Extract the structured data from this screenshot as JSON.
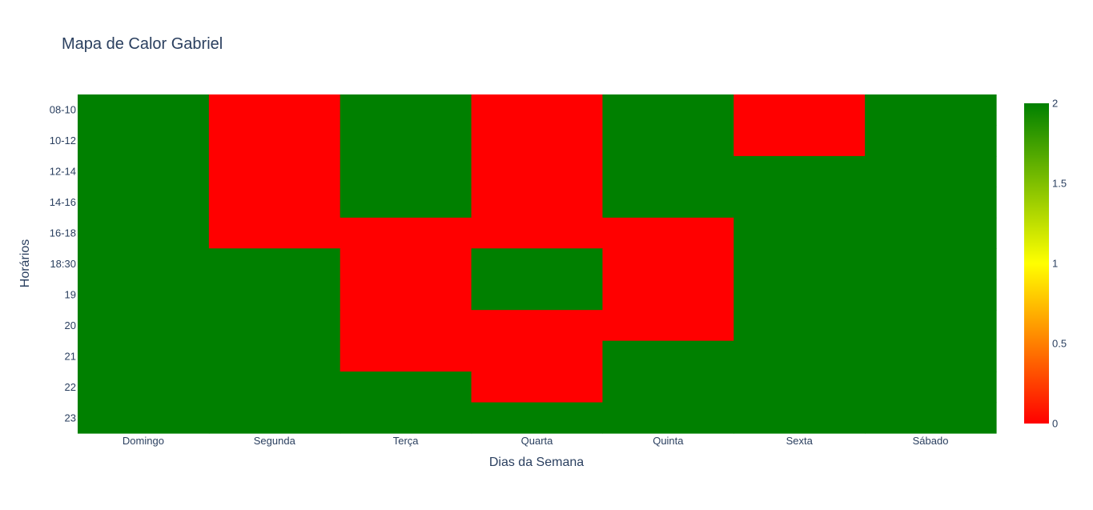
{
  "chart_data": {
    "type": "heatmap",
    "title": "Mapa de Calor Gabriel",
    "xlabel": "Dias da Semana",
    "ylabel": "Horários",
    "x": [
      "Domingo",
      "Segunda",
      "Terça",
      "Quarta",
      "Quinta",
      "Sexta",
      "Sábado"
    ],
    "y": [
      "08-10",
      "10-12",
      "12-14",
      "14-16",
      "16-18",
      "18:30",
      "19",
      "20",
      "21",
      "22",
      "23"
    ],
    "z": [
      [
        2,
        0,
        2,
        0,
        2,
        0,
        2
      ],
      [
        2,
        0,
        2,
        0,
        2,
        0,
        2
      ],
      [
        2,
        0,
        2,
        0,
        2,
        2,
        2
      ],
      [
        2,
        0,
        2,
        0,
        2,
        2,
        2
      ],
      [
        2,
        0,
        0,
        0,
        0,
        2,
        2
      ],
      [
        2,
        2,
        0,
        2,
        0,
        2,
        2
      ],
      [
        2,
        2,
        0,
        2,
        0,
        2,
        2
      ],
      [
        2,
        2,
        0,
        0,
        0,
        2,
        2
      ],
      [
        2,
        2,
        0,
        0,
        2,
        2,
        2
      ],
      [
        2,
        2,
        2,
        0,
        2,
        2,
        2
      ],
      [
        2,
        2,
        2,
        2,
        2,
        2,
        2
      ]
    ],
    "colorscale": [
      [
        0,
        "#ff0000"
      ],
      [
        0.5,
        "#ffff00"
      ],
      [
        1,
        "#008000"
      ]
    ],
    "zrange": [
      0,
      2
    ],
    "colorbar": {
      "ticks": [
        0,
        0.5,
        1,
        1.5,
        2
      ],
      "ticklabels": [
        "0",
        "0.5",
        "1",
        "1.5",
        "2"
      ]
    }
  }
}
